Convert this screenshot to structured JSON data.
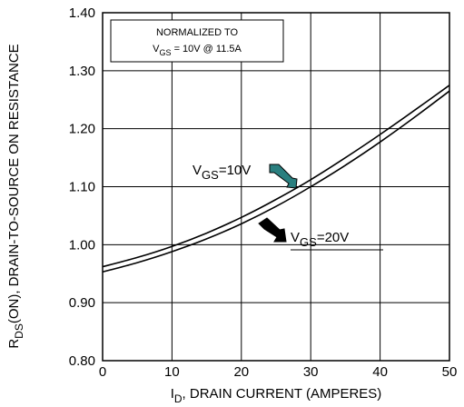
{
  "chart_data": {
    "type": "line",
    "xlabel_main": "I",
    "xlabel_sub": "D",
    "xlabel_rest": ", DRAIN CURRENT (AMPERES)",
    "ylabel_main": "R",
    "ylabel_sub": "DS",
    "ylabel_rest": "(ON), DRAIN-TO-SOURCE ON RESISTANCE",
    "xlim": [
      0,
      50
    ],
    "ylim": [
      0.8,
      1.4
    ],
    "x_ticks": [
      0,
      10,
      20,
      30,
      40,
      50
    ],
    "x_tick_labels": [
      "0",
      "10",
      "20",
      "30",
      "40",
      "50"
    ],
    "y_ticks": [
      0.8,
      0.9,
      1.0,
      1.1,
      1.2,
      1.3,
      1.4
    ],
    "y_tick_labels": [
      "0.80",
      "0.90",
      "1.00",
      "1.10",
      "1.20",
      "1.30",
      "1.40"
    ],
    "grid": true,
    "note": {
      "line1": "NORMALIZED TO",
      "line2_main": "V",
      "line2_sub": "GS",
      "line2_rest": " = 10V  @  11.5A"
    },
    "series": [
      {
        "label_main": "V",
        "label_sub": "GS",
        "label_rest": "=10V",
        "marker_color": "#2a7f7f",
        "x": [
          0,
          5,
          10,
          15,
          20,
          25,
          30,
          35,
          40,
          45,
          50
        ],
        "y": [
          0.962,
          0.978,
          0.997,
          1.02,
          1.047,
          1.078,
          1.112,
          1.15,
          1.19,
          1.232,
          1.275
        ]
      },
      {
        "label_main": "V",
        "label_sub": "GS",
        "label_rest": "=20V",
        "marker_color": "#000000",
        "x": [
          0,
          5,
          10,
          15,
          20,
          25,
          30,
          35,
          40,
          45,
          50
        ],
        "y": [
          0.953,
          0.969,
          0.988,
          1.01,
          1.036,
          1.066,
          1.1,
          1.137,
          1.177,
          1.22,
          1.265
        ]
      }
    ]
  }
}
